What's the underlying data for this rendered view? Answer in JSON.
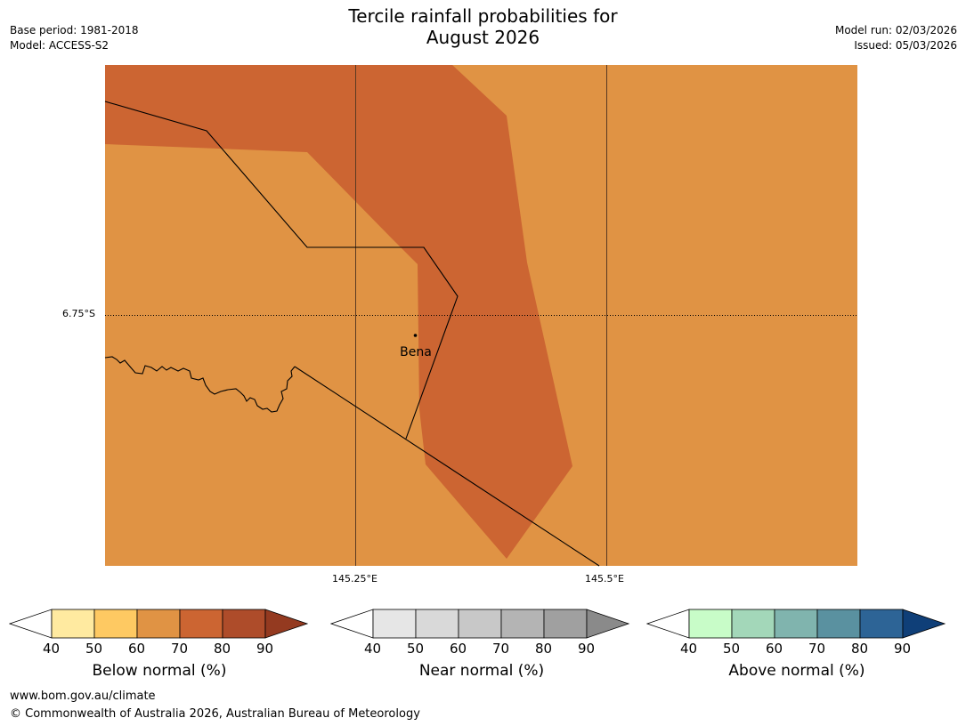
{
  "header": {
    "title_line1": "Tercile rainfall probabilities for",
    "title_line2": "August 2026",
    "base_period": "Base period: 1981-2018",
    "model": "Model: ACCESS-S2",
    "model_run": "Model run: 02/03/2026",
    "issued": "Issued: 05/03/2026"
  },
  "map": {
    "place_label": "Bena",
    "lat_label": "6.75°S",
    "lon_labels": [
      "145.25°E",
      "145.5°E"
    ],
    "region_colors": {
      "below_60_70": "#e09344",
      "below_70_80": "#cc6532"
    }
  },
  "legends": [
    {
      "title": "Below normal (%)",
      "ticks": [
        "40",
        "50",
        "60",
        "70",
        "80",
        "90"
      ],
      "colors": [
        "#ffffff",
        "#ffeaa0",
        "#fec962",
        "#e09344",
        "#cc6532",
        "#ae4c2a",
        "#943a20"
      ]
    },
    {
      "title": "Near normal (%)",
      "ticks": [
        "40",
        "50",
        "60",
        "70",
        "80",
        "90"
      ],
      "colors": [
        "#ffffff",
        "#e6e6e6",
        "#d9d9d9",
        "#c8c8c8",
        "#b4b4b4",
        "#a0a0a0",
        "#8a8a8a"
      ]
    },
    {
      "title": "Above normal (%)",
      "ticks": [
        "40",
        "50",
        "60",
        "70",
        "80",
        "90"
      ],
      "colors": [
        "#ffffff",
        "#c8fcc8",
        "#a3d7b9",
        "#80b4ae",
        "#5a91a0",
        "#2d6496",
        "#0f3f78"
      ]
    }
  ],
  "footer": {
    "url": "www.bom.gov.au/climate",
    "copyright": "© Commonwealth of Australia 2026, Australian Bureau of Meteorology"
  }
}
